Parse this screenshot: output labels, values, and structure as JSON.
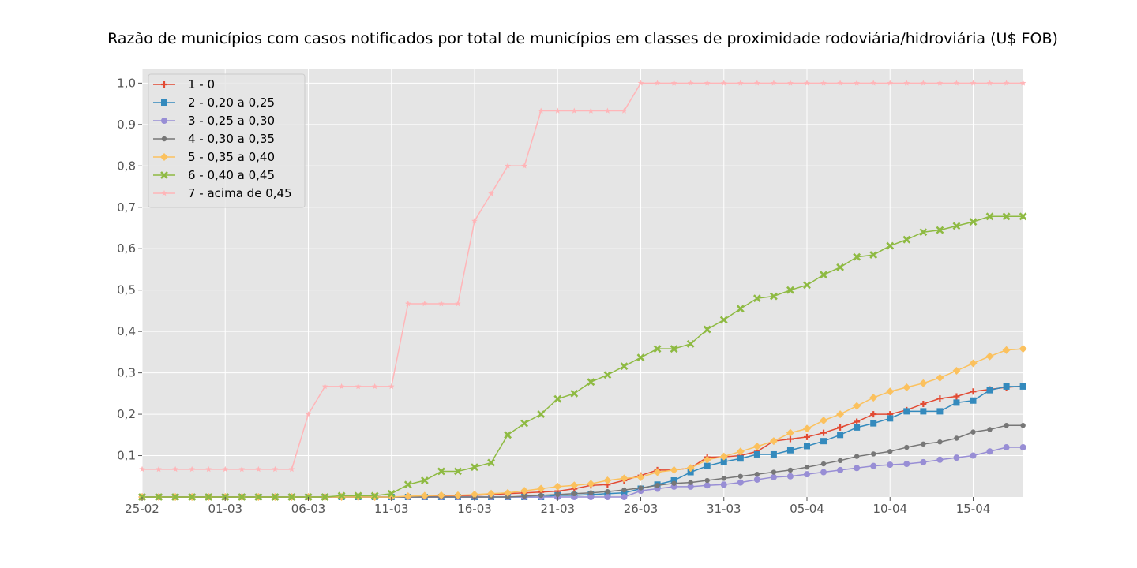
{
  "chart_data": {
    "type": "line",
    "title": "Razão de municípios com casos notificados por total de municípios em classes de proximidade rodoviária/hidroviária (U$ FOB)",
    "xlabel": "",
    "ylabel": "",
    "x": [
      "25-02",
      "26-02",
      "27-02",
      "28-02",
      "29-02",
      "01-03",
      "02-03",
      "03-03",
      "04-03",
      "05-03",
      "06-03",
      "07-03",
      "08-03",
      "09-03",
      "10-03",
      "11-03",
      "12-03",
      "13-03",
      "14-03",
      "15-03",
      "16-03",
      "17-03",
      "18-03",
      "19-03",
      "20-03",
      "21-03",
      "22-03",
      "23-03",
      "24-03",
      "25-03",
      "26-03",
      "27-03",
      "28-03",
      "29-03",
      "30-03",
      "31-03",
      "01-04",
      "02-04",
      "03-04",
      "04-04",
      "05-04",
      "06-04",
      "07-04",
      "08-04",
      "09-04",
      "10-04",
      "11-04",
      "12-04",
      "13-04",
      "14-04",
      "15-04",
      "16-04",
      "17-04",
      "18-04"
    ],
    "x_tick_labels": [
      "25-02",
      "01-03",
      "06-03",
      "11-03",
      "16-03",
      "21-03",
      "26-03",
      "31-03",
      "05-04",
      "10-04",
      "15-04"
    ],
    "y_tick_labels": [
      "0,1",
      "0,2",
      "0,3",
      "0,4",
      "0,5",
      "0,6",
      "0,7",
      "0,8",
      "0,9",
      "1,0"
    ],
    "ylim": [
      0,
      1.035
    ],
    "grid": true,
    "legend_position": "top-left",
    "series": [
      {
        "name": "1 - 0",
        "color": "#E24A33",
        "marker": "plus",
        "values": [
          0,
          0,
          0,
          0,
          0,
          0,
          0,
          0,
          0,
          0,
          0,
          0,
          0,
          0,
          0,
          0,
          0,
          0.002,
          0.002,
          0.003,
          0.004,
          0.006,
          0.008,
          0.01,
          0.012,
          0.014,
          0.02,
          0.028,
          0.03,
          0.04,
          0.052,
          0.065,
          0.065,
          0.07,
          0.096,
          0.097,
          0.1,
          0.11,
          0.135,
          0.14,
          0.145,
          0.155,
          0.168,
          0.182,
          0.2,
          0.2,
          0.21,
          0.225,
          0.238,
          0.243,
          0.255,
          0.26,
          0.265,
          0.268
        ]
      },
      {
        "name": "2 - 0,20 a 0,25",
        "color": "#348ABD",
        "marker": "square",
        "values": [
          0,
          0,
          0,
          0,
          0,
          0,
          0,
          0,
          0,
          0,
          0,
          0,
          0,
          0,
          0,
          0,
          0,
          0,
          0,
          0,
          0,
          0,
          0,
          0,
          0,
          0.004,
          0.004,
          0.006,
          0.008,
          0.01,
          0.02,
          0.03,
          0.04,
          0.06,
          0.075,
          0.085,
          0.093,
          0.103,
          0.103,
          0.113,
          0.123,
          0.135,
          0.15,
          0.168,
          0.178,
          0.19,
          0.207,
          0.207,
          0.207,
          0.228,
          0.233,
          0.258,
          0.267,
          0.267
        ]
      },
      {
        "name": "3 - 0,25 a 0,30",
        "color": "#988ED5",
        "marker": "circle",
        "values": [
          0,
          0,
          0,
          0,
          0,
          0,
          0,
          0,
          0,
          0,
          0,
          0,
          0,
          0,
          0,
          0,
          0,
          0,
          0,
          0,
          0,
          0,
          0,
          0,
          0,
          0,
          0,
          0,
          0,
          0,
          0.015,
          0.02,
          0.025,
          0.025,
          0.028,
          0.03,
          0.035,
          0.042,
          0.048,
          0.05,
          0.055,
          0.06,
          0.065,
          0.07,
          0.075,
          0.078,
          0.08,
          0.084,
          0.09,
          0.095,
          0.1,
          0.11,
          0.12,
          0.12
        ]
      },
      {
        "name": "4 - 0,30 a 0,35",
        "color": "#777777",
        "marker": "dot",
        "values": [
          0,
          0,
          0,
          0,
          0,
          0,
          0,
          0,
          0,
          0,
          0,
          0,
          0,
          0,
          0,
          0,
          0,
          0,
          0,
          0,
          0,
          0,
          0,
          0.002,
          0.004,
          0.006,
          0.008,
          0.01,
          0.013,
          0.017,
          0.022,
          0.028,
          0.033,
          0.035,
          0.04,
          0.045,
          0.05,
          0.055,
          0.06,
          0.065,
          0.072,
          0.08,
          0.088,
          0.098,
          0.104,
          0.11,
          0.12,
          0.128,
          0.133,
          0.142,
          0.157,
          0.163,
          0.173,
          0.173
        ]
      },
      {
        "name": "5 - 0,35 a 0,40",
        "color": "#FBC15E",
        "marker": "diamond",
        "values": [
          0,
          0,
          0,
          0,
          0,
          0,
          0,
          0,
          0,
          0,
          0,
          0,
          0,
          0,
          0,
          0,
          0.002,
          0.003,
          0.004,
          0.004,
          0.006,
          0.008,
          0.01,
          0.015,
          0.02,
          0.025,
          0.028,
          0.032,
          0.04,
          0.045,
          0.048,
          0.06,
          0.065,
          0.07,
          0.09,
          0.098,
          0.11,
          0.122,
          0.135,
          0.155,
          0.165,
          0.185,
          0.2,
          0.22,
          0.24,
          0.255,
          0.265,
          0.275,
          0.288,
          0.305,
          0.323,
          0.34,
          0.355,
          0.358
        ]
      },
      {
        "name": "6 - 0,40 a 0,45",
        "color": "#8EBA42",
        "marker": "x",
        "values": [
          0,
          0,
          0,
          0,
          0,
          0,
          0,
          0,
          0,
          0,
          0,
          0,
          0.003,
          0.003,
          0.003,
          0.008,
          0.03,
          0.04,
          0.062,
          0.062,
          0.072,
          0.083,
          0.15,
          0.178,
          0.2,
          0.237,
          0.25,
          0.278,
          0.295,
          0.316,
          0.337,
          0.358,
          0.358,
          0.37,
          0.405,
          0.428,
          0.455,
          0.48,
          0.485,
          0.5,
          0.512,
          0.537,
          0.555,
          0.58,
          0.585,
          0.607,
          0.622,
          0.64,
          0.645,
          0.655,
          0.665,
          0.678,
          0.678,
          0.678
        ]
      },
      {
        "name": "7 - acima de 0,45",
        "color": "#FFB5B8",
        "marker": "star",
        "values": [
          0.067,
          0.067,
          0.067,
          0.067,
          0.067,
          0.067,
          0.067,
          0.067,
          0.067,
          0.067,
          0.2,
          0.267,
          0.267,
          0.267,
          0.267,
          0.267,
          0.467,
          0.467,
          0.467,
          0.467,
          0.667,
          0.733,
          0.8,
          0.8,
          0.933,
          0.933,
          0.933,
          0.933,
          0.933,
          0.933,
          1.0,
          1.0,
          1.0,
          1.0,
          1.0,
          1.0,
          1.0,
          1.0,
          1.0,
          1.0,
          1.0,
          1.0,
          1.0,
          1.0,
          1.0,
          1.0,
          1.0,
          1.0,
          1.0,
          1.0,
          1.0,
          1.0,
          1.0,
          1.0
        ]
      }
    ]
  }
}
